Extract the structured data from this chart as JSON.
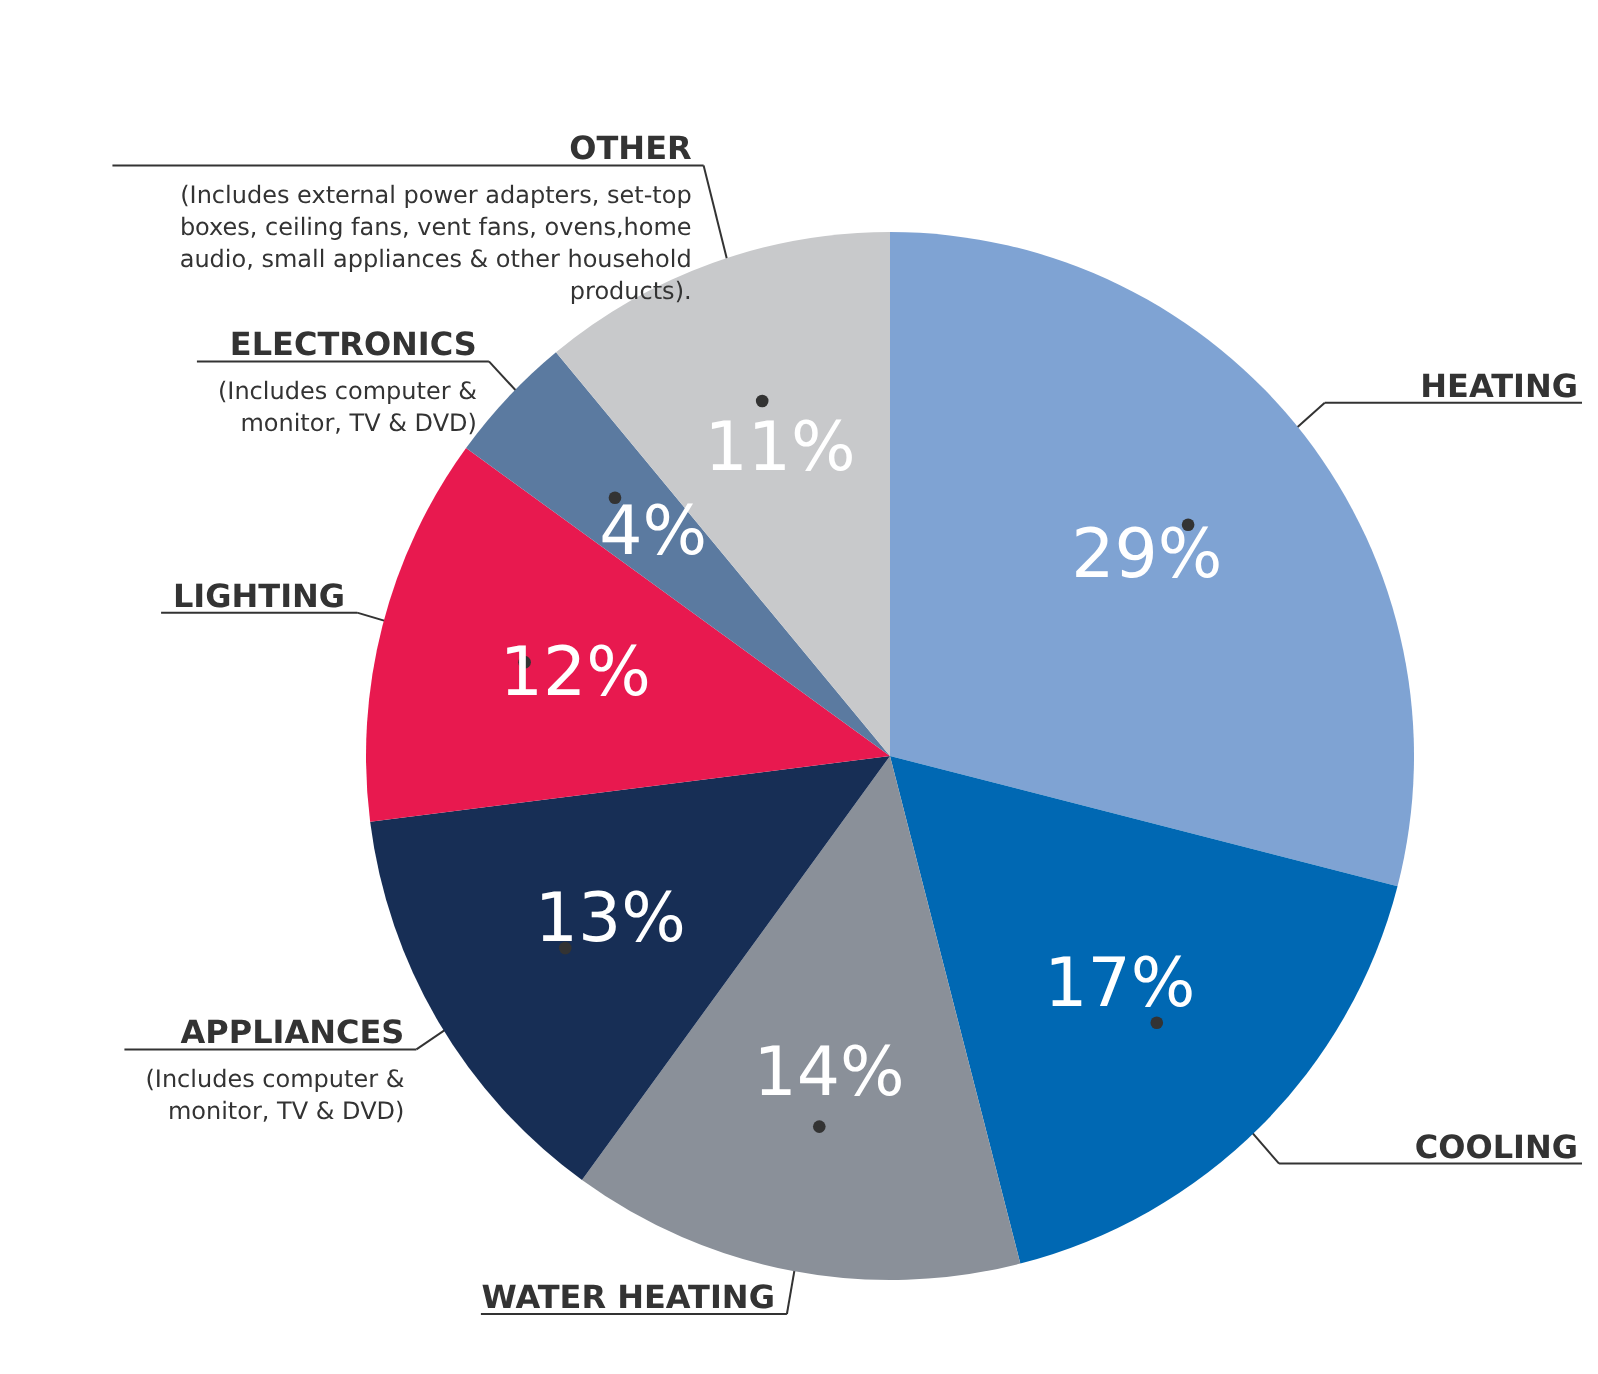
{
  "chart_data": {
    "type": "pie",
    "categories": [
      "HEATING",
      "COOLING",
      "WATER HEATING",
      "APPLIANCES",
      "LIGHTING",
      "ELECTRONICS",
      "OTHER"
    ],
    "values": [
      29,
      17,
      14,
      13,
      12,
      4,
      11
    ],
    "value_labels": [
      "29%",
      "17%",
      "14%",
      "13%",
      "12%",
      "4%",
      "11%"
    ],
    "colors": [
      "#7fa3d3",
      "#0068b3",
      "#8a9099",
      "#172e55",
      "#e8194f",
      "#5b7aa0",
      "#c8c9cb"
    ],
    "annotations": [
      {
        "text": "(Includes computer & monitor, TV & DVD)",
        "x": "APPLIANCES"
      },
      {
        "text": "(Includes computer & monitor, TV & DVD)",
        "x": "ELECTRONICS"
      },
      {
        "text": "(Includes external power adapters, set-top boxes, ceiling fans, vent fans, ovens,home audio, small appliances & other household products).",
        "x": "OTHER"
      }
    ]
  }
}
